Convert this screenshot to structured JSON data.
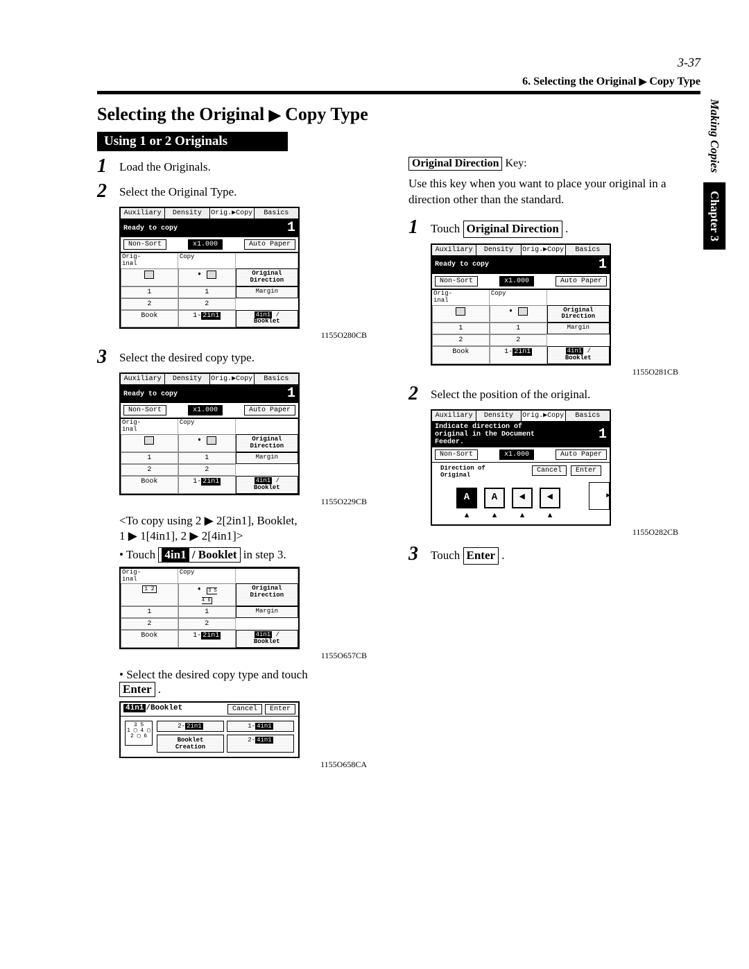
{
  "page_number": "3-37",
  "header": {
    "prefix": "6. Selecting the Original ",
    "suffix": " Copy Type"
  },
  "section_title": {
    "prefix": "Selecting the Original ",
    "suffix": " Copy Type"
  },
  "subheader": "Using 1 or 2 Originals",
  "left_steps": {
    "s1": "Load the Originals.",
    "s2": "Select the Original Type.",
    "s3": "Select the desired copy type.",
    "note1": "<To copy using 2 ▶ 2[2in1], Booklet,",
    "note2": "1 ▶ 1[4in1], 2 ▶ 2[4in1]>",
    "bullet1_pre": "• Touch ",
    "bullet1_black": "4in1",
    "bullet1_box": " / Booklet",
    "bullet1_post": " in step 3.",
    "bullet2_pre": "• Select the desired copy type and touch",
    "bullet2_box": "Enter",
    "bullet2_post": " ."
  },
  "right": {
    "heading_box": "Original Direction",
    "heading_post": "  Key:",
    "heading_line2": "Use this key when you want to place your original in a direction other than the standard.",
    "s1_pre": "Touch ",
    "s1_box": "Original Direction",
    "s1_post": " .",
    "s2": "Select the position of the original.",
    "s3_pre": "Touch ",
    "s3_box": "Enter",
    "s3_post": " ."
  },
  "captions": {
    "c1": "1155O280CB",
    "c2": "1155O229CB",
    "c3": "1155O657CB",
    "c4": "1155O658CA",
    "c5": "1155O281CB",
    "c6": "1155O282CB"
  },
  "side_tab": {
    "chapter": "Chapter 3",
    "section": "Making Copies"
  },
  "panel_common": {
    "tabs": [
      "Auxiliary",
      "Density",
      "Orig.▶Copy",
      "Basics"
    ],
    "status": "Ready to copy",
    "count": "1",
    "non_sort": "Non-Sort",
    "zoom": "x1.000",
    "auto_paper": "Auto Paper",
    "orig_label": "Orig-\ninal",
    "copy_label": "Copy",
    "rows_orig": [
      "1",
      "2",
      "Book"
    ],
    "rows_copy": [
      "1",
      "2",
      "1-2in1"
    ],
    "side": {
      "orig_dir": "Original\nDirection",
      "margin": "Margin",
      "booklet": "4in1 /\nBooklet"
    }
  },
  "panel_dir": {
    "status": "Indicate direction of\noriginal in the Document\nFeeder.",
    "dir_label": "Direction of\nOriginal",
    "cancel": "Cancel",
    "enter": "Enter"
  },
  "panel_short": {
    "title": "4in1 /Booklet",
    "cancel": "Cancel",
    "enter": "Enter",
    "opts": [
      "2-2in1",
      "1-4in1",
      "Booklet\nCreation",
      "2-4in1"
    ]
  }
}
